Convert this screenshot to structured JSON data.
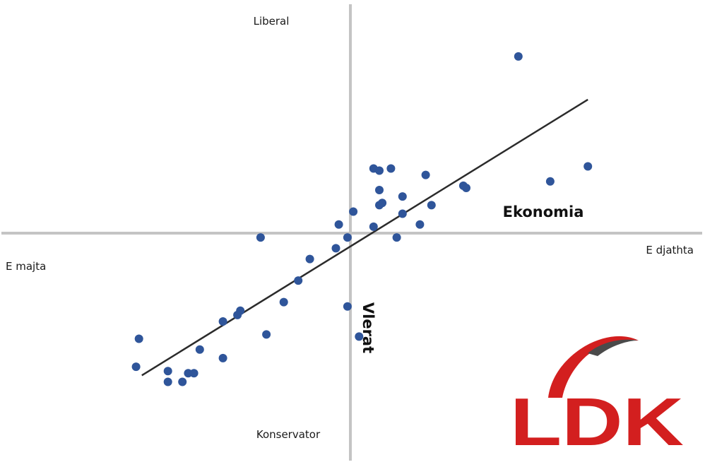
{
  "chart_data": {
    "type": "scatter",
    "title": "",
    "axes": {
      "x": {
        "name": "Ekonomia",
        "left_pole": "E majta",
        "right_pole": "E djathta",
        "range": [
          -10,
          10
        ]
      },
      "y": {
        "name": "Vlerat",
        "top_pole": "Liberal",
        "bottom_pole": "Konservator",
        "range": [
          -10,
          10
        ]
      }
    },
    "grid": false,
    "legend": "none",
    "series": [
      {
        "points": [
          [
            5.8,
            8.2
          ],
          [
            6.9,
            2.4
          ],
          [
            8.2,
            3.1
          ],
          [
            1.4,
            3.0
          ],
          [
            0.8,
            3.0
          ],
          [
            1.0,
            2.9
          ],
          [
            2.6,
            2.7
          ],
          [
            3.9,
            2.2
          ],
          [
            4.0,
            2.1
          ],
          [
            1.0,
            2.0
          ],
          [
            1.8,
            1.7
          ],
          [
            1.1,
            1.4
          ],
          [
            1.0,
            1.3
          ],
          [
            2.8,
            1.3
          ],
          [
            0.1,
            1.0
          ],
          [
            1.8,
            0.9
          ],
          [
            -0.4,
            0.4
          ],
          [
            2.4,
            0.4
          ],
          [
            0.8,
            0.3
          ],
          [
            -3.1,
            -0.2
          ],
          [
            1.6,
            -0.2
          ],
          [
            -0.1,
            -0.2
          ],
          [
            -0.5,
            -0.7
          ],
          [
            -1.4,
            -1.2
          ],
          [
            -1.8,
            -2.2
          ],
          [
            -2.3,
            -3.2
          ],
          [
            -0.1,
            -3.4
          ],
          [
            -3.8,
            -3.6
          ],
          [
            -3.9,
            -3.8
          ],
          [
            -4.4,
            -4.1
          ],
          [
            -2.9,
            -4.7
          ],
          [
            0.3,
            -4.8
          ],
          [
            -7.3,
            -4.9
          ],
          [
            -5.2,
            -5.4
          ],
          [
            -4.4,
            -5.8
          ],
          [
            -7.4,
            -6.2
          ],
          [
            -6.3,
            -6.4
          ],
          [
            -5.6,
            -6.5
          ],
          [
            -5.4,
            -6.5
          ],
          [
            -6.3,
            -6.9
          ],
          [
            -5.8,
            -6.9
          ]
        ]
      }
    ],
    "trendline": {
      "from": [
        -7.2,
        -6.6
      ],
      "to": [
        8.2,
        6.2
      ]
    },
    "colors": {
      "points": "#2f559a",
      "trendline": "#2b2b2b",
      "axes": "#c4c4c4",
      "logo_red": "#d31f1f",
      "logo_gray": "#4a4a4a"
    }
  },
  "logo": {
    "text": "LDK",
    "icon": "ldk-swoosh-icon"
  }
}
